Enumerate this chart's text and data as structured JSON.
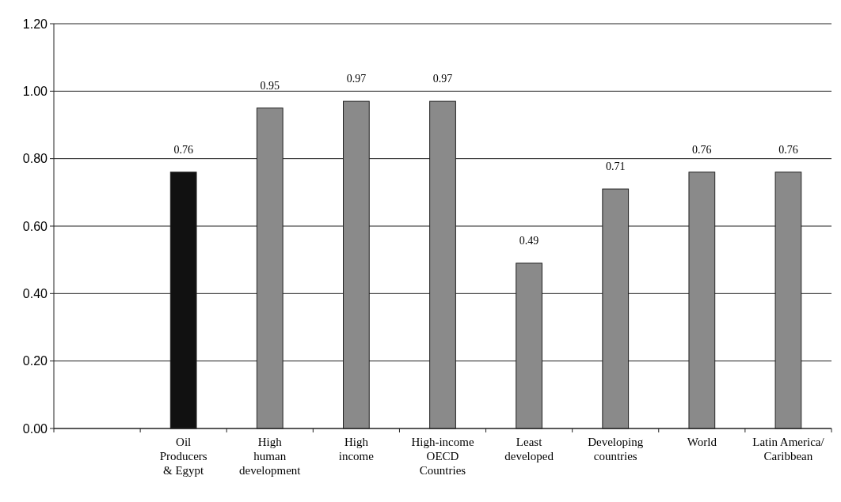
{
  "chart_data": {
    "type": "bar",
    "categories": [
      null,
      "Oil\nProducers\n& Egypt",
      "High\nhuman\ndevelopment",
      "High\nincome",
      "High-income\nOECD\nCountries",
      "Least\ndeveloped",
      "Developing\ncountries",
      "World",
      "Latin America/\nCaribbean"
    ],
    "values": [
      null,
      0.76,
      0.95,
      0.97,
      0.97,
      0.49,
      0.71,
      0.76,
      0.76
    ],
    "colors": [
      null,
      "#111111",
      "#8a8a8a",
      "#8a8a8a",
      "#8a8a8a",
      "#8a8a8a",
      "#8a8a8a",
      "#8a8a8a",
      "#8a8a8a"
    ],
    "ylim": [
      0,
      1.2
    ],
    "yticks": [
      {
        "value": 0,
        "label": "0.00"
      },
      {
        "value": 0.2,
        "label": "0.20"
      },
      {
        "value": 0.4,
        "label": "0.40"
      },
      {
        "value": 0.6,
        "label": "0.60"
      },
      {
        "value": 0.8,
        "label": "0.80"
      },
      {
        "value": 1,
        "label": "1.00"
      },
      {
        "value": 1.2,
        "label": "1.20"
      }
    ],
    "grid": "y",
    "data_labels": true
  }
}
